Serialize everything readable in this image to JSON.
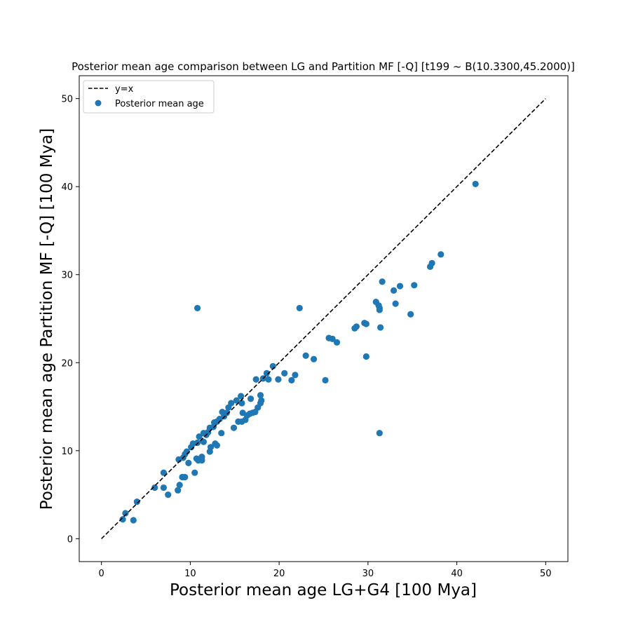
{
  "chart_data": {
    "type": "scatter",
    "title": "Posterior mean age comparison between LG and Partition MF [-Q] [t199 ~ B(10.3300,45.2000)]",
    "xlabel": "Posterior mean age LG+G4 [100 Mya]",
    "ylabel": "Posterior mean age Partition MF [-Q] [100 Mya]",
    "xlim": [
      -2.5,
      52.5
    ],
    "ylim": [
      -2.6,
      52.6
    ],
    "xticks": [
      0,
      10,
      20,
      30,
      40,
      50
    ],
    "yticks": [
      0,
      10,
      20,
      30,
      40,
      50
    ],
    "grid": false,
    "legend_position": "top-left",
    "colors": {
      "points": "#1f77b4",
      "reference_line": "#000000"
    },
    "series": [
      {
        "name": "y=x",
        "kind": "line",
        "style": "dashed",
        "x": [
          0,
          50
        ],
        "y": [
          0,
          50
        ]
      },
      {
        "name": "Posterior mean age",
        "kind": "scatter",
        "points": [
          [
            2.4,
            2.2
          ],
          [
            2.7,
            2.9
          ],
          [
            3.6,
            2.1
          ],
          [
            4.0,
            4.2
          ],
          [
            6.0,
            5.8
          ],
          [
            7.0,
            5.8
          ],
          [
            7.0,
            7.5
          ],
          [
            7.5,
            5.0
          ],
          [
            8.6,
            5.5
          ],
          [
            8.7,
            9.0
          ],
          [
            8.8,
            6.1
          ],
          [
            9.1,
            7.0
          ],
          [
            9.2,
            9.2
          ],
          [
            9.4,
            7.0
          ],
          [
            9.4,
            9.6
          ],
          [
            9.6,
            9.9
          ],
          [
            9.8,
            8.6
          ],
          [
            10.1,
            10.4
          ],
          [
            10.3,
            10.8
          ],
          [
            10.5,
            7.5
          ],
          [
            10.7,
            9.1
          ],
          [
            10.8,
            10.9
          ],
          [
            10.8,
            26.2
          ],
          [
            10.9,
            8.9
          ],
          [
            11.0,
            11.6
          ],
          [
            11.3,
            9.3
          ],
          [
            11.3,
            8.9
          ],
          [
            11.5,
            12.0
          ],
          [
            11.5,
            11.0
          ],
          [
            11.8,
            11.8
          ],
          [
            12.0,
            12.1
          ],
          [
            12.2,
            12.6
          ],
          [
            12.3,
            10.4
          ],
          [
            12.2,
            9.9
          ],
          [
            12.6,
            12.7
          ],
          [
            12.7,
            13.2
          ],
          [
            12.8,
            10.8
          ],
          [
            13.0,
            10.6
          ],
          [
            13.0,
            13.3
          ],
          [
            13.3,
            13.6
          ],
          [
            13.5,
            12.0
          ],
          [
            13.6,
            14.4
          ],
          [
            13.8,
            13.9
          ],
          [
            14.1,
            14.3
          ],
          [
            14.3,
            14.9
          ],
          [
            14.6,
            15.4
          ],
          [
            14.9,
            12.6
          ],
          [
            15.2,
            15.7
          ],
          [
            15.4,
            13.3
          ],
          [
            15.7,
            16.2
          ],
          [
            15.8,
            13.3
          ],
          [
            15.8,
            15.4
          ],
          [
            15.9,
            14.3
          ],
          [
            16.2,
            13.5
          ],
          [
            16.4,
            14.0
          ],
          [
            16.7,
            14.2
          ],
          [
            16.8,
            15.9
          ],
          [
            17.0,
            14.3
          ],
          [
            17.3,
            14.4
          ],
          [
            17.4,
            18.1
          ],
          [
            17.6,
            14.9
          ],
          [
            17.9,
            15.4
          ],
          [
            17.9,
            16.3
          ],
          [
            18.0,
            15.7
          ],
          [
            18.2,
            18.2
          ],
          [
            18.6,
            18.8
          ],
          [
            18.8,
            18.1
          ],
          [
            19.3,
            19.6
          ],
          [
            19.9,
            18.1
          ],
          [
            20.6,
            18.8
          ],
          [
            21.4,
            18.0
          ],
          [
            21.8,
            18.6
          ],
          [
            22.3,
            26.2
          ],
          [
            23.0,
            20.8
          ],
          [
            23.9,
            20.4
          ],
          [
            25.2,
            18.0
          ],
          [
            25.6,
            22.8
          ],
          [
            26.0,
            22.7
          ],
          [
            26.5,
            22.3
          ],
          [
            28.5,
            23.9
          ],
          [
            28.7,
            24.1
          ],
          [
            29.6,
            24.5
          ],
          [
            29.8,
            24.4
          ],
          [
            29.8,
            20.7
          ],
          [
            30.9,
            26.9
          ],
          [
            31.2,
            26.5
          ],
          [
            31.3,
            26.2
          ],
          [
            31.3,
            26.0
          ],
          [
            31.4,
            24.0
          ],
          [
            31.3,
            12.0
          ],
          [
            31.6,
            29.2
          ],
          [
            32.9,
            28.2
          ],
          [
            33.1,
            26.7
          ],
          [
            33.6,
            28.7
          ],
          [
            34.8,
            25.5
          ],
          [
            35.2,
            28.8
          ],
          [
            37.0,
            30.9
          ],
          [
            37.2,
            31.3
          ],
          [
            38.2,
            32.3
          ],
          [
            42.1,
            40.3
          ]
        ]
      }
    ]
  }
}
